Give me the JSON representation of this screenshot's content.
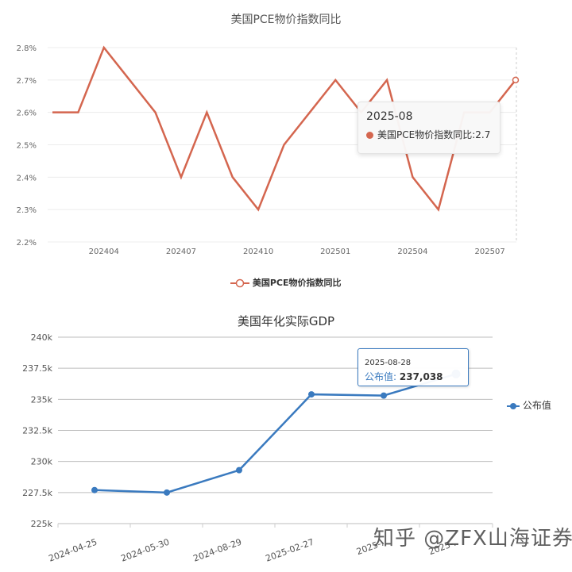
{
  "chart_data": [
    {
      "type": "line",
      "title": "美国PCE物价指数同比",
      "x": [
        "2024-02",
        "2024-03",
        "2024-04",
        "2024-05",
        "2024-06",
        "2024-07",
        "2024-08",
        "2024-09",
        "2024-10",
        "2024-11",
        "2024-12",
        "2025-01",
        "2025-02",
        "2025-03",
        "2025-04",
        "2025-05",
        "2025-06",
        "2025-07",
        "2025-08"
      ],
      "series": [
        {
          "name": "美国PCE物价指数同比",
          "values": [
            2.6,
            2.6,
            2.8,
            2.7,
            2.6,
            2.4,
            2.6,
            2.4,
            2.3,
            2.5,
            2.6,
            2.7,
            2.6,
            2.7,
            2.4,
            2.3,
            2.6,
            2.6,
            2.7
          ]
        }
      ],
      "xtick_labels": [
        "202404",
        "202407",
        "202410",
        "202501",
        "202504",
        "202507"
      ],
      "ytick_labels": [
        "2.2%",
        "2.3%",
        "2.4%",
        "2.5%",
        "2.6%",
        "2.7%",
        "2.8%"
      ],
      "ylim": [
        2.2,
        2.8
      ],
      "xlabel": "",
      "ylabel": "",
      "grid": true,
      "legend_position": "bottom",
      "color": "#d4664f",
      "tooltip": {
        "date": "2025-08",
        "series": "美国PCE物价指数同比",
        "value": "2.7"
      }
    },
    {
      "type": "line",
      "title": "美国年化实际GDP",
      "x": [
        "2024-04-25",
        "2024-05-30",
        "2024-08-29",
        "2025-02-27",
        "2025-03-27",
        "2025-08-28"
      ],
      "series": [
        {
          "name": "公布值",
          "values": [
            227700,
            227500,
            229300,
            235400,
            235300,
            237038
          ]
        }
      ],
      "xtick_labels": [
        "2024-04-25",
        "2024-05-30",
        "2024-08-29",
        "2025-02-27",
        "2025-..",
        "2025-.."
      ],
      "ytick_labels": [
        "225k",
        "227.5k",
        "230k",
        "232.5k",
        "235k",
        "237.5k",
        "240k"
      ],
      "ylim": [
        225000,
        240000
      ],
      "xlabel": "",
      "ylabel": "",
      "grid": true,
      "legend_position": "right",
      "color": "#3a7abf",
      "tooltip": {
        "date": "2025-08-28",
        "label": "公布值:",
        "value": "237,038"
      }
    }
  ],
  "watermark": "知乎 @ZFX山海证券官方"
}
